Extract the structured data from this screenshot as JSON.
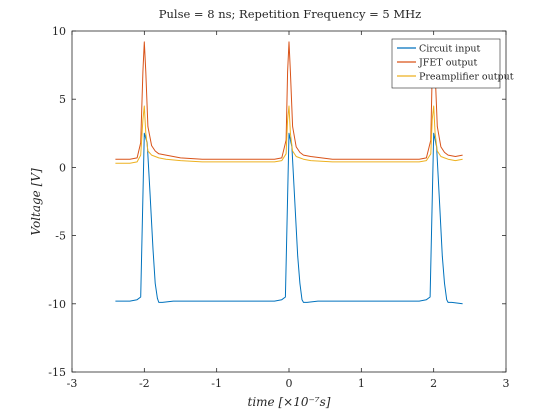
{
  "chart_data": {
    "type": "line",
    "title": "Pulse = 8 ns; Repetition Frequency = 5 MHz",
    "xlabel": "time [×10⁻⁷s]",
    "ylabel": "Voltage [V]",
    "xlim": [
      -3,
      3
    ],
    "ylim": [
      -15,
      10
    ],
    "xticks": [
      -3,
      -2,
      -1,
      0,
      1,
      2,
      3
    ],
    "yticks": [
      -15,
      -10,
      -5,
      0,
      5,
      10
    ],
    "grid": false,
    "legend_position": "top-right",
    "pulse_centers": [
      -2,
      0,
      2
    ],
    "series": [
      {
        "name": "Circuit input",
        "color": "#0072BD",
        "x": [
          -2.4,
          -2.2,
          -2.1,
          -2.05,
          -2.0,
          -1.96,
          -1.92,
          -1.88,
          -1.85,
          -1.82,
          -1.8,
          -1.75,
          -1.6,
          -1.2,
          -0.6,
          -0.2,
          -0.1,
          -0.05,
          0.0,
          0.04,
          0.08,
          0.12,
          0.15,
          0.18,
          0.2,
          0.25,
          0.4,
          0.8,
          1.2,
          1.6,
          1.8,
          1.9,
          1.95,
          2.0,
          2.04,
          2.08,
          2.12,
          2.15,
          2.18,
          2.2,
          2.25,
          2.4
        ],
        "y": [
          -9.8,
          -9.8,
          -9.7,
          -9.5,
          2.5,
          1.8,
          -2.0,
          -6.0,
          -8.5,
          -9.6,
          -9.9,
          -9.9,
          -9.8,
          -9.8,
          -9.8,
          -9.8,
          -9.7,
          -9.5,
          2.5,
          1.5,
          -2.5,
          -6.5,
          -8.5,
          -9.7,
          -9.9,
          -9.9,
          -9.8,
          -9.8,
          -9.8,
          -9.8,
          -9.8,
          -9.7,
          -9.5,
          2.5,
          1.5,
          -2.5,
          -6.5,
          -8.5,
          -9.7,
          -9.9,
          -9.9,
          -10.0
        ]
      },
      {
        "name": "JFET output",
        "color": "#D95319",
        "x": [
          -2.4,
          -2.2,
          -2.1,
          -2.05,
          -2.02,
          -2.0,
          -1.98,
          -1.95,
          -1.9,
          -1.85,
          -1.8,
          -1.7,
          -1.5,
          -1.2,
          -0.6,
          -0.2,
          -0.1,
          -0.04,
          -0.02,
          0.0,
          0.02,
          0.05,
          0.1,
          0.15,
          0.2,
          0.3,
          0.6,
          1.2,
          1.6,
          1.8,
          1.9,
          1.96,
          1.98,
          2.0,
          2.02,
          2.05,
          2.1,
          2.15,
          2.2,
          2.3,
          2.4
        ],
        "y": [
          0.6,
          0.6,
          0.7,
          1.8,
          7.0,
          9.2,
          7.0,
          3.0,
          1.6,
          1.2,
          1.0,
          0.9,
          0.7,
          0.6,
          0.6,
          0.6,
          0.7,
          2.0,
          7.0,
          9.2,
          7.0,
          3.0,
          1.5,
          1.1,
          0.9,
          0.8,
          0.6,
          0.6,
          0.6,
          0.6,
          0.7,
          2.0,
          7.0,
          9.2,
          7.0,
          3.0,
          1.5,
          1.1,
          0.9,
          0.8,
          0.9
        ]
      },
      {
        "name": "Preamplifier output",
        "color": "#EDB120",
        "x": [
          -2.4,
          -2.2,
          -2.1,
          -2.05,
          -2.02,
          -2.0,
          -1.98,
          -1.95,
          -1.9,
          -1.85,
          -1.8,
          -1.7,
          -1.5,
          -1.2,
          -0.6,
          -0.2,
          -0.1,
          -0.04,
          -0.02,
          0.0,
          0.02,
          0.05,
          0.1,
          0.15,
          0.2,
          0.3,
          0.6,
          1.2,
          1.6,
          1.8,
          1.9,
          1.96,
          1.98,
          2.0,
          2.02,
          2.05,
          2.1,
          2.15,
          2.2,
          2.3,
          2.4
        ],
        "y": [
          0.3,
          0.3,
          0.4,
          0.9,
          3.5,
          4.5,
          2.5,
          1.2,
          0.9,
          0.8,
          0.7,
          0.6,
          0.5,
          0.4,
          0.4,
          0.4,
          0.5,
          1.0,
          3.5,
          4.5,
          2.5,
          1.2,
          0.8,
          0.7,
          0.6,
          0.5,
          0.4,
          0.4,
          0.4,
          0.4,
          0.5,
          1.0,
          3.5,
          4.5,
          2.5,
          1.2,
          0.8,
          0.7,
          0.6,
          0.5,
          0.6
        ]
      }
    ]
  }
}
